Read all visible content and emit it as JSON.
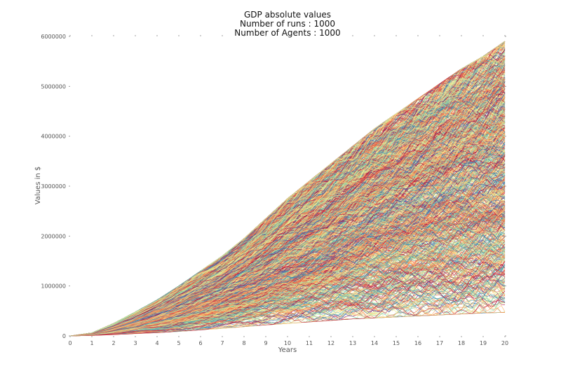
{
  "chart_data": {
    "type": "line",
    "title": [
      "GDP absolute values",
      "Number of runs : 1000",
      "Number of Agents : 1000"
    ],
    "xlabel": "Years",
    "ylabel": "Values in $",
    "xlim": [
      0,
      20
    ],
    "ylim": [
      0,
      6000000
    ],
    "x_ticks": [
      "0",
      "1",
      "2",
      "3",
      "4",
      "5",
      "6",
      "7",
      "8",
      "9",
      "10",
      "11",
      "12",
      "13",
      "14",
      "15",
      "16",
      "17",
      "18",
      "19",
      "20"
    ],
    "y_ticks": [
      "0",
      "1000000",
      "2000000",
      "3000000",
      "4000000",
      "5000000",
      "6000000"
    ],
    "grid": false,
    "legend": "none",
    "series_count": 1000,
    "colormap": [
      "#9e0142",
      "#d53e4f",
      "#f46d43",
      "#fdae61",
      "#fee08b",
      "#e6f598",
      "#abdda4",
      "#66c2a5",
      "#3288bd",
      "#5e4fa2"
    ],
    "envelope": {
      "x": [
        0,
        1,
        2,
        3,
        4,
        5,
        6,
        7,
        8,
        9,
        10,
        11,
        12,
        13,
        14,
        15,
        16,
        17,
        18,
        19,
        20
      ],
      "upper": [
        0,
        60000,
        250000,
        480000,
        720000,
        1000000,
        1300000,
        1600000,
        1950000,
        2350000,
        2750000,
        3100000,
        3450000,
        3800000,
        4150000,
        4450000,
        4750000,
        5050000,
        5350000,
        5600000,
        5900000
      ],
      "lower": [
        0,
        8000,
        25000,
        45000,
        65000,
        90000,
        120000,
        150000,
        185000,
        220000,
        250000,
        280000,
        310000,
        340000,
        360000,
        380000,
        400000,
        420000,
        440000,
        460000,
        470000
      ]
    }
  }
}
